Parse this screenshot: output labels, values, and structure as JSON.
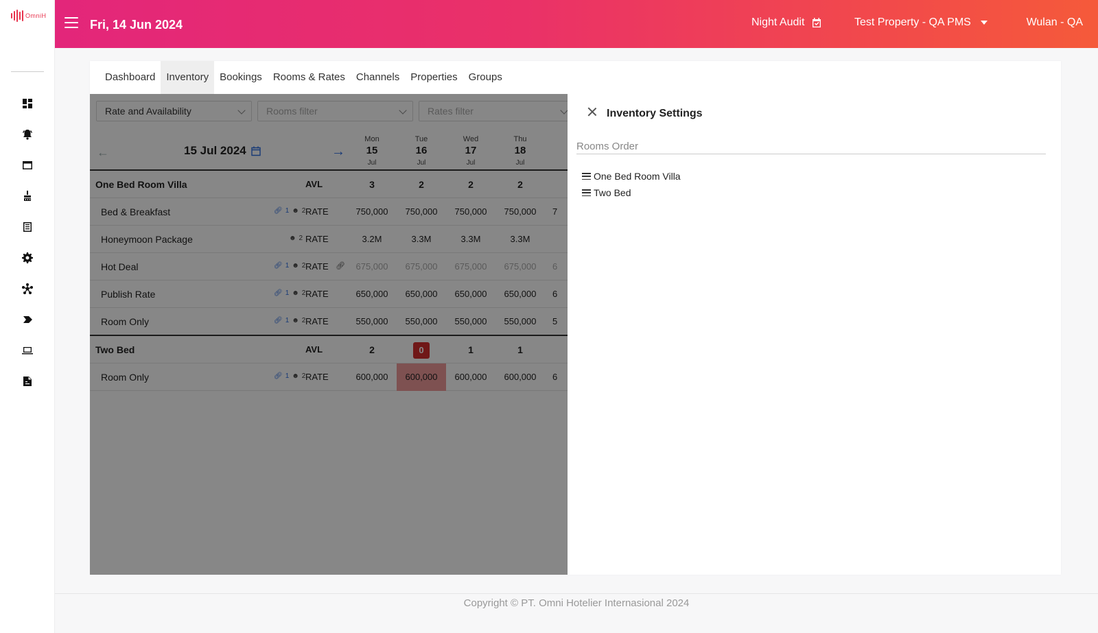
{
  "app": {
    "logo_text": "OmniH"
  },
  "header": {
    "date": "Fri, 14 Jun 2024",
    "night_audit": "Night Audit",
    "property": "Test Property - QA PMS",
    "user": "Wulan - QA"
  },
  "sidebar": {
    "icons": [
      "dashboard-icon",
      "alarm-bell-icon",
      "window-icon",
      "housekeeping-icon",
      "list-icon",
      "gear-icon",
      "network-icon",
      "arrow-tag-icon",
      "laptop-icon",
      "report-icon"
    ]
  },
  "tabs": [
    {
      "label": "Dashboard",
      "active": false
    },
    {
      "label": "Inventory",
      "active": true
    },
    {
      "label": "Bookings",
      "active": false
    },
    {
      "label": "Rooms & Rates",
      "active": false
    },
    {
      "label": "Channels",
      "active": false
    },
    {
      "label": "Properties",
      "active": false
    },
    {
      "label": "Groups",
      "active": false
    }
  ],
  "filters": {
    "view": "Rate and Availability",
    "rooms_placeholder": "Rooms filter",
    "rates_placeholder": "Rates filter"
  },
  "date_nav": {
    "current": "15 Jul 2024",
    "days": [
      {
        "name": "Mon",
        "day": "15",
        "month": "Jul"
      },
      {
        "name": "Tue",
        "day": "16",
        "month": "Jul"
      },
      {
        "name": "Wed",
        "day": "17",
        "month": "Jul"
      },
      {
        "name": "Thu",
        "day": "18",
        "month": "Jul"
      }
    ]
  },
  "grid": {
    "avl_label": "AVL",
    "rate_label": "RATE",
    "link_count": "1",
    "occupancy": "2",
    "rooms": [
      {
        "name": "One Bed Room Villa",
        "availability": [
          "3",
          "2",
          "2",
          "2"
        ],
        "rates": [
          {
            "name": "Bed & Breakfast",
            "linked": true,
            "values": [
              "750,000",
              "750,000",
              "750,000",
              "750,000"
            ],
            "next_partial": "7",
            "muted": false
          },
          {
            "name": "Honeymoon Package",
            "linked": false,
            "values": [
              "3.2M",
              "3.3M",
              "3.3M",
              "3.3M"
            ],
            "next_partial": "",
            "muted": false
          },
          {
            "name": "Hot Deal",
            "linked": true,
            "derived": true,
            "values": [
              "675,000",
              "675,000",
              "675,000",
              "675,000"
            ],
            "next_partial": "6",
            "muted": true
          },
          {
            "name": "Publish Rate",
            "linked": true,
            "values": [
              "650,000",
              "650,000",
              "650,000",
              "650,000"
            ],
            "next_partial": "6",
            "muted": false
          },
          {
            "name": "Room Only",
            "linked": true,
            "values": [
              "550,000",
              "550,000",
              "550,000",
              "550,000"
            ],
            "next_partial": "5",
            "muted": false
          }
        ]
      },
      {
        "name": "Two Bed",
        "availability": [
          "2",
          "0",
          "1",
          "1"
        ],
        "rates": [
          {
            "name": "Room Only",
            "linked": true,
            "values": [
              "600,000",
              "600,000",
              "600,000",
              "600,000"
            ],
            "next_partial": "6",
            "muted": false
          }
        ]
      }
    ]
  },
  "panel": {
    "title": "Inventory Settings",
    "section": "Rooms Order",
    "rooms_order": [
      "One Bed Room Villa",
      "Two Bed"
    ]
  },
  "footer": {
    "copyright": "Copyright © PT. Omni Hotelier Internasional 2024"
  }
}
